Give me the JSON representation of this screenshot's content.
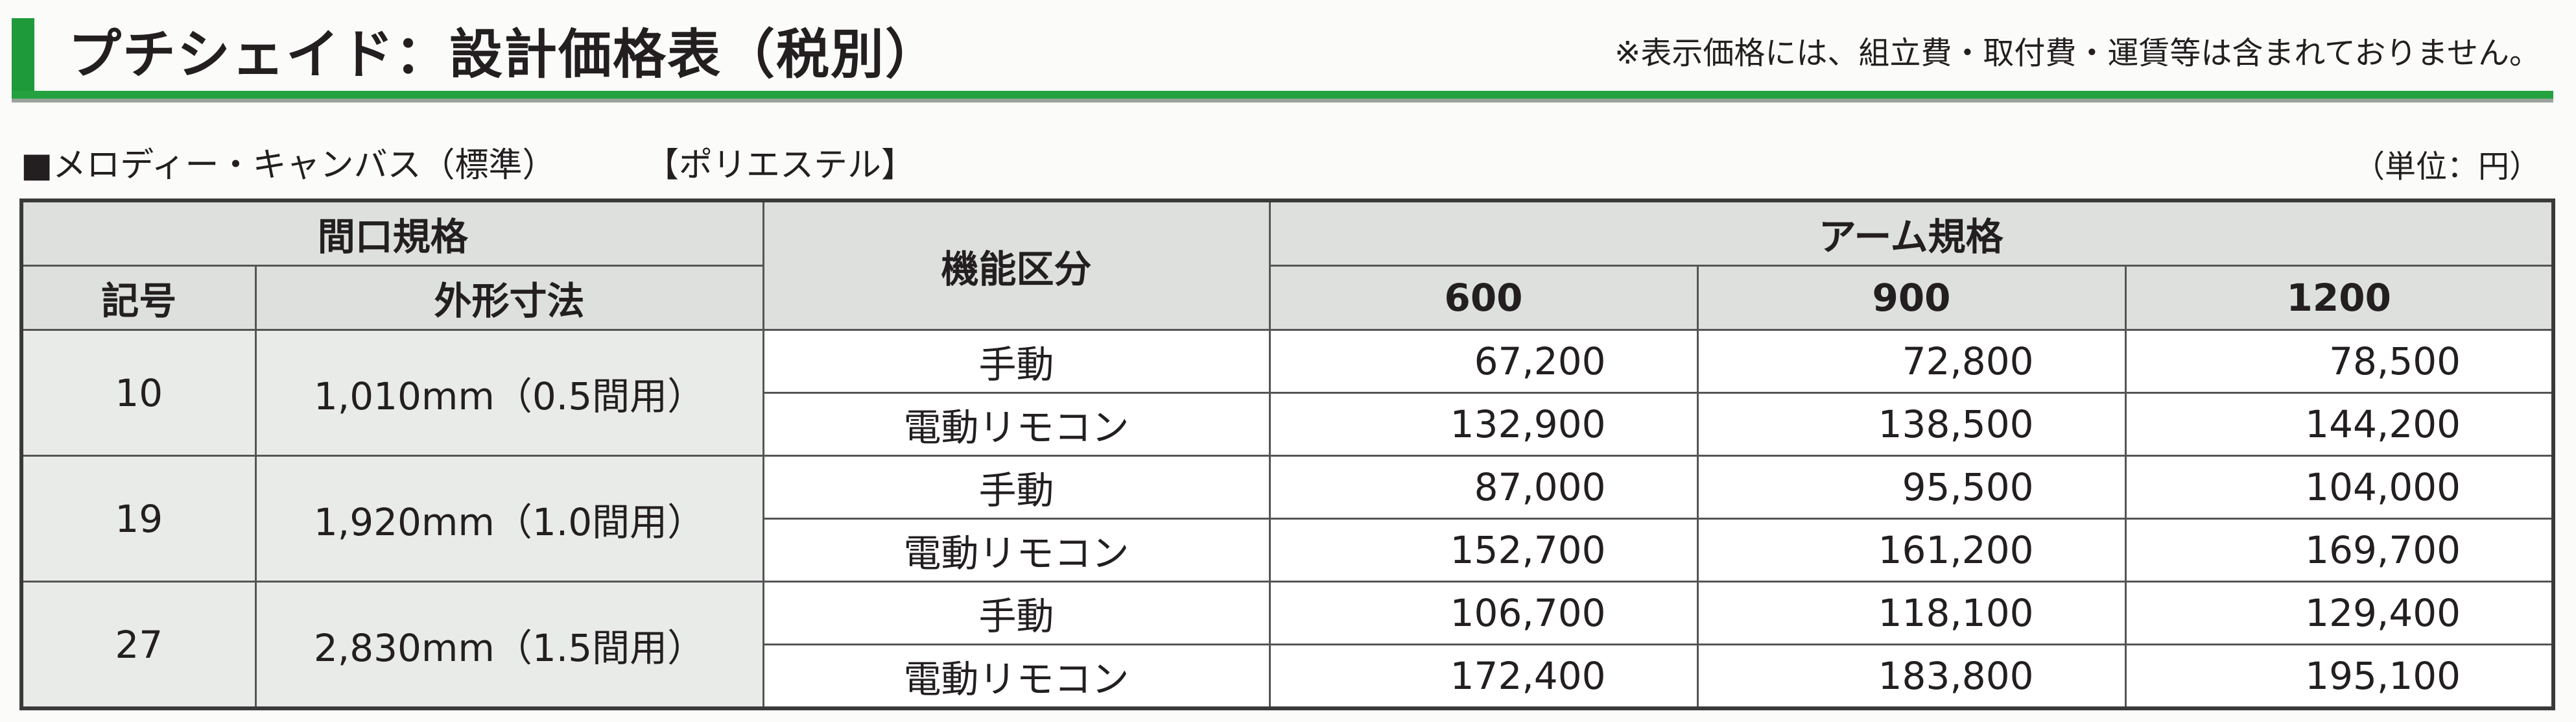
{
  "header": {
    "title": "プチシェイド：設計価格表（税別）",
    "note": "※表示価格には、組立費・取付費・運賃等は含まれておりません。"
  },
  "section": {
    "subtitle": "■メロディー・キャンバス（標準）",
    "material": "【ポリエステル】",
    "unit": "（単位：円）"
  },
  "table": {
    "col_headers": {
      "opening_spec": "間口規格",
      "code": "記号",
      "dimensions": "外形寸法",
      "function": "機能区分",
      "arm_spec": "アーム規格",
      "arm_sizes": [
        "600",
        "900",
        "1200"
      ]
    },
    "rows": [
      {
        "code": "10",
        "dimension": "1,010mm（0.5間用）",
        "entries": [
          {
            "function": "手動",
            "prices": [
              "67,200",
              "72,800",
              "78,500"
            ]
          },
          {
            "function": "電動リモコン",
            "prices": [
              "132,900",
              "138,500",
              "144,200"
            ]
          }
        ]
      },
      {
        "code": "19",
        "dimension": "1,920mm（1.0間用）",
        "entries": [
          {
            "function": "手動",
            "prices": [
              "87,000",
              "95,500",
              "104,000"
            ]
          },
          {
            "function": "電動リモコン",
            "prices": [
              "152,700",
              "161,200",
              "169,700"
            ]
          }
        ]
      },
      {
        "code": "27",
        "dimension": "2,830mm（1.5間用）",
        "entries": [
          {
            "function": "手動",
            "prices": [
              "106,700",
              "118,100",
              "129,400"
            ]
          },
          {
            "function": "電動リモコン",
            "prices": [
              "172,400",
              "183,800",
              "195,100"
            ]
          }
        ]
      }
    ]
  },
  "colors": {
    "accent_green": "#1f9a3b",
    "header_gray": "#dde0dd"
  }
}
